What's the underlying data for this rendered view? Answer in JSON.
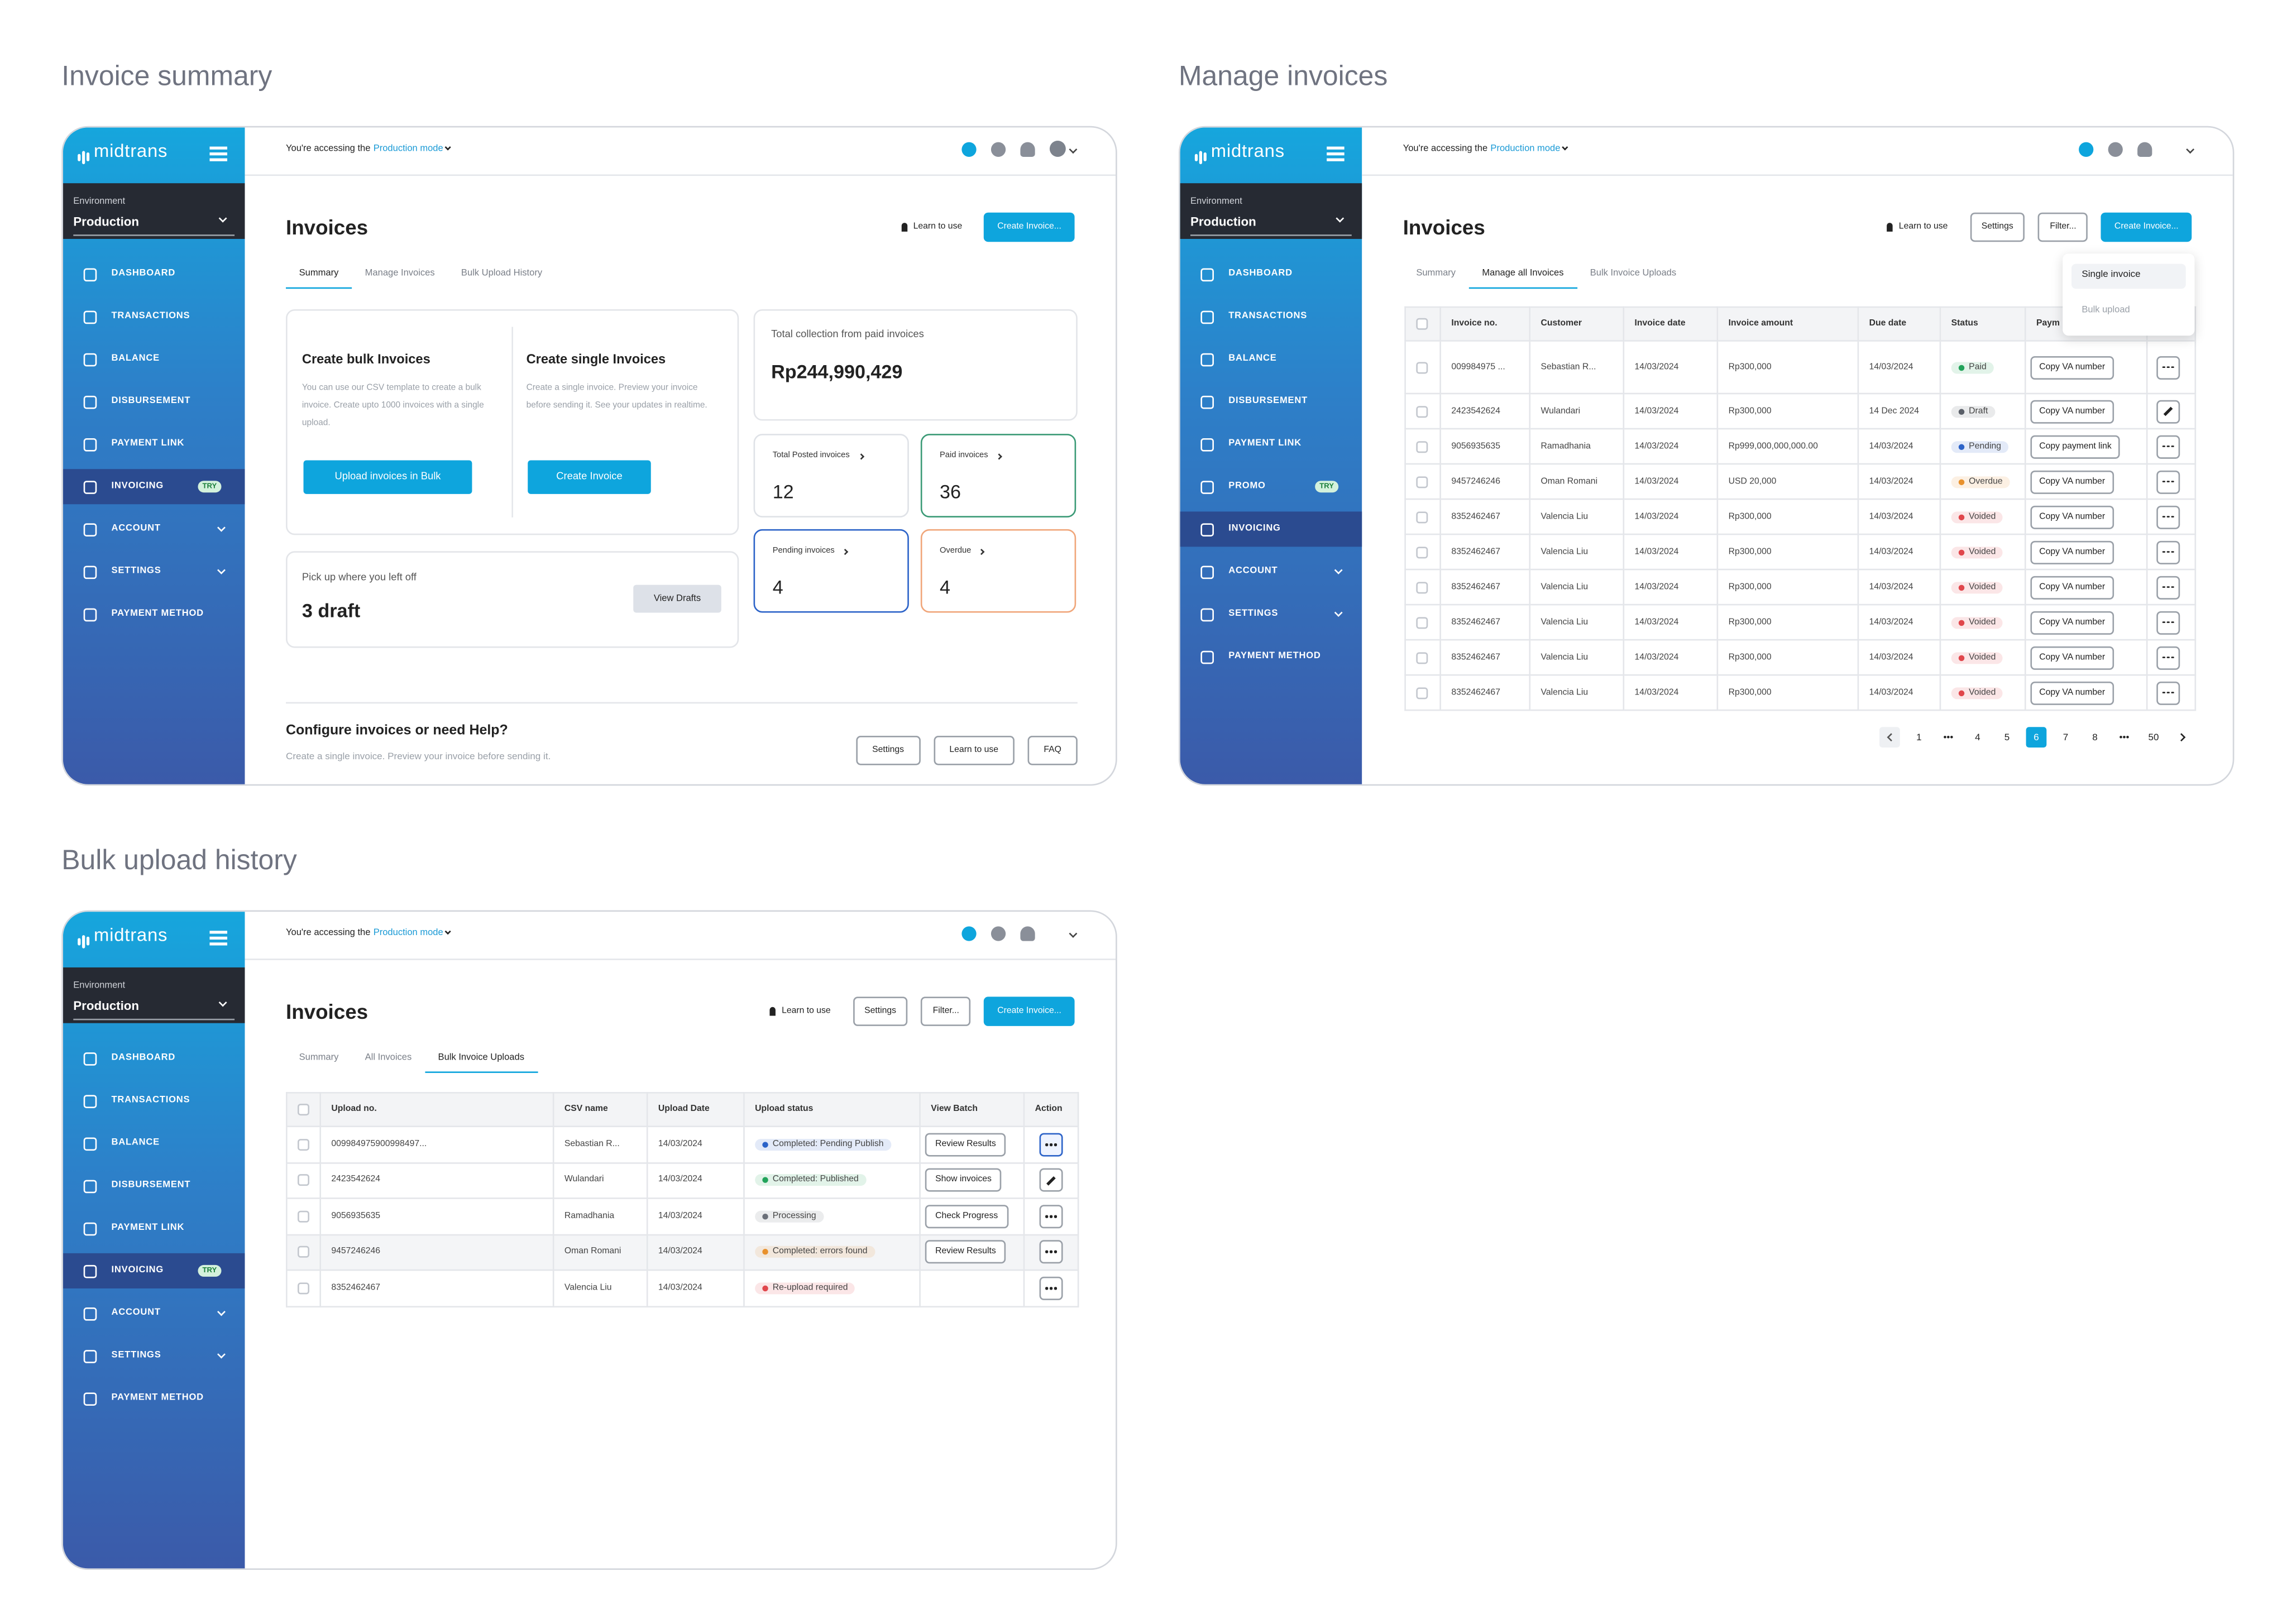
{
  "panels": [
    {
      "heading": "Invoice summary",
      "sidebar": {
        "logo": "midtrans",
        "env_label": "Environment",
        "env_value": "Production",
        "menu": [
          {
            "label": "DASHBOARD"
          },
          {
            "label": "TRANSACTIONS"
          },
          {
            "label": "BALANCE"
          },
          {
            "label": "DISBURSEMENT"
          },
          {
            "label": "PAYMENT LINK"
          },
          {
            "label": "INVOICING",
            "badge": "TRY",
            "active": true
          },
          {
            "label": "ACCOUNT",
            "expandable": true
          },
          {
            "label": "SETTINGS",
            "expandable": true
          },
          {
            "label": "PAYMENT METHOD"
          }
        ]
      },
      "notice": "You're accessing the",
      "mode": "Production mode",
      "avatar": true,
      "title": "Invoices",
      "learn": "Learn to use",
      "actions": [],
      "create": "Create Invoice...",
      "tabs": [
        "Summary",
        "Manage Invoices",
        "Bulk Upload History"
      ],
      "active_tab": 0,
      "summary": {
        "bulk": {
          "title": "Create bulk Invoices",
          "text": "You can use our CSV template to create a bulk invoice. Create upto 1000 invoices with a single upload.",
          "button": "Upload invoices in Bulk"
        },
        "single": {
          "title": "Create single Invoices",
          "text": "Create a single invoice. Preview your invoice before sending it. See your updates in realtime.",
          "button": "Create Invoice"
        },
        "draft": {
          "text": "Pick up where you left off",
          "count": "3 draft",
          "button": "View Drafts"
        },
        "total": {
          "label": "Total collection from paid invoices",
          "amount": "Rp244,990,429"
        },
        "stats": [
          {
            "label": "Total Posted invoices",
            "value": 12,
            "color": "#dfe2e7"
          },
          {
            "label": "Paid invoices",
            "value": 36,
            "color": "#3b9a76"
          },
          {
            "label": "Pending invoices",
            "value": 4,
            "color": "#2c63c8"
          },
          {
            "label": "Overdue",
            "value": 4,
            "color": "#f0a67a"
          }
        ],
        "help": {
          "title": "Configure invoices or need Help?",
          "text": "Create a single invoice. Preview your invoice before sending it.",
          "buttons": [
            "Settings",
            "Learn to use",
            "FAQ"
          ]
        }
      }
    },
    {
      "heading": "Manage invoices",
      "sidebar": {
        "logo": "midtrans",
        "env_label": "Environment",
        "env_value": "Production",
        "menu": [
          {
            "label": "DASHBOARD"
          },
          {
            "label": "TRANSACTIONS"
          },
          {
            "label": "BALANCE"
          },
          {
            "label": "DISBURSEMENT"
          },
          {
            "label": "PAYMENT LINK"
          },
          {
            "label": "PROMO",
            "badge": "TRY"
          },
          {
            "label": "INVOICING",
            "active": true
          },
          {
            "label": "ACCOUNT",
            "expandable": true
          },
          {
            "label": "SETTINGS",
            "expandable": true
          },
          {
            "label": "PAYMENT METHOD"
          }
        ]
      },
      "notice": "You're accessing the",
      "mode": "Production mode",
      "title": "Invoices",
      "learn": "Learn to use",
      "actions": [
        "Settings",
        "Filter..."
      ],
      "create": "Create Invoice...",
      "create_menu": [
        "Single invoice",
        "Bulk upload"
      ],
      "tabs": [
        "Summary",
        "Manage all Invoices",
        "Bulk Invoice Uploads"
      ],
      "active_tab": 1,
      "invoice_table": {
        "columns": [
          "Invoice no.",
          "Customer",
          "Invoice date",
          "Invoice amount",
          "Due date",
          "Status",
          "Paym"
        ],
        "rows": [
          {
            "no": "009984975 ...",
            "customer": "Sebastian R...",
            "date": "14/03/2024",
            "amount": "Rp300,000",
            "due": "14/03/2024",
            "status": "Paid",
            "color": "#22a35a",
            "button": "Copy VA number",
            "action_icon": "more"
          },
          {
            "no": "2423542624",
            "customer": "Wulandari",
            "date": "14/03/2024",
            "amount": "Rp300,000",
            "due": "14 Dec 2024",
            "status": "Draft",
            "color": "#5a5f68",
            "button": "Copy VA number",
            "action_icon": "edit"
          },
          {
            "no": "9056935635",
            "customer": "Ramadhania",
            "date": "14/03/2024",
            "amount": "Rp999,000,000,000.00",
            "due": "14/03/2024",
            "status": "Pending",
            "color": "#2c63c8",
            "button": "Copy payment link",
            "action_icon": "more"
          },
          {
            "no": "9457246246",
            "customer": "Oman Romani",
            "date": "14/03/2024",
            "amount": "USD 20,000",
            "due": "14/03/2024",
            "status": "Overdue",
            "color": "#e8912d",
            "button": "Copy VA number",
            "action_icon": "more"
          },
          {
            "no": "8352462467",
            "customer": "Valencia Liu",
            "date": "14/03/2024",
            "amount": "Rp300,000",
            "due": "14/03/2024",
            "status": "Voided",
            "color": "#e0474c",
            "button": "Copy VA number",
            "action_icon": "more"
          },
          {
            "no": "8352462467",
            "customer": "Valencia Liu",
            "date": "14/03/2024",
            "amount": "Rp300,000",
            "due": "14/03/2024",
            "status": "Voided",
            "color": "#e0474c",
            "button": "Copy VA number",
            "action_icon": "more"
          },
          {
            "no": "8352462467",
            "customer": "Valencia Liu",
            "date": "14/03/2024",
            "amount": "Rp300,000",
            "due": "14/03/2024",
            "status": "Voided",
            "color": "#e0474c",
            "button": "Copy VA number",
            "action_icon": "more"
          },
          {
            "no": "8352462467",
            "customer": "Valencia Liu",
            "date": "14/03/2024",
            "amount": "Rp300,000",
            "due": "14/03/2024",
            "status": "Voided",
            "color": "#e0474c",
            "button": "Copy VA number",
            "action_icon": "more"
          },
          {
            "no": "8352462467",
            "customer": "Valencia Liu",
            "date": "14/03/2024",
            "amount": "Rp300,000",
            "due": "14/03/2024",
            "status": "Voided",
            "color": "#e0474c",
            "button": "Copy VA number",
            "action_icon": "more"
          },
          {
            "no": "8352462467",
            "customer": "Valencia Liu",
            "date": "14/03/2024",
            "amount": "Rp300,000",
            "due": "14/03/2024",
            "status": "Voided",
            "color": "#e0474c",
            "button": "Copy VA number",
            "action_icon": "more"
          }
        ],
        "pages": [
          "1",
          "•••",
          "4",
          "5",
          "6",
          "7",
          "8",
          "•••",
          "50"
        ],
        "active_page": 4
      }
    },
    {
      "heading": "Bulk upload history",
      "sidebar": {
        "logo": "midtrans",
        "env_label": "Environment",
        "env_value": "Production",
        "menu": [
          {
            "label": "DASHBOARD"
          },
          {
            "label": "TRANSACTIONS"
          },
          {
            "label": "BALANCE"
          },
          {
            "label": "DISBURSEMENT"
          },
          {
            "label": "PAYMENT LINK"
          },
          {
            "label": "INVOICING",
            "badge": "TRY",
            "active": true
          },
          {
            "label": "ACCOUNT",
            "expandable": true
          },
          {
            "label": "SETTINGS",
            "expandable": true
          },
          {
            "label": "PAYMENT METHOD"
          }
        ]
      },
      "notice": "You're accessing the",
      "mode": "Production mode",
      "title": "Invoices",
      "learn": "Learn to use",
      "actions": [
        "Settings",
        "Filter..."
      ],
      "create": "Create Invoice...",
      "tabs": [
        "Summary",
        "All Invoices",
        "Bulk Invoice Uploads"
      ],
      "active_tab": 2,
      "upload_table": {
        "columns": [
          "Upload no.",
          "CSV name",
          "Upload Date",
          "Upload status",
          "View Batch",
          "Action"
        ],
        "rows": [
          {
            "no": "009984975900998497...",
            "csv": "Sebastian R...",
            "date": "14/03/2024",
            "status": "Completed: Pending Publish",
            "color": "#2c63c8",
            "button": "Review Results",
            "action_icon": "more",
            "selected": true
          },
          {
            "no": "2423542624",
            "csv": "Wulandari",
            "date": "14/03/2024",
            "status": "Completed: Published",
            "color": "#22a35a",
            "button": "Show invoices",
            "action_icon": "edit"
          },
          {
            "no": "9056935635",
            "csv": "Ramadhania",
            "date": "14/03/2024",
            "status": "Processing",
            "color": "#6b7079",
            "button": "Check Progress",
            "action_icon": "more"
          },
          {
            "no": "9457246246",
            "csv": "Oman Romani",
            "date": "14/03/2024",
            "status": "Completed: errors found",
            "color": "#e8912d",
            "button": "Review Results",
            "action_icon": "more",
            "highlighted": true
          },
          {
            "no": "8352462467",
            "csv": "Valencia Liu",
            "date": "14/03/2024",
            "status": "Re-upload required",
            "color": "#e0474c",
            "action_icon": "more"
          }
        ]
      }
    }
  ]
}
